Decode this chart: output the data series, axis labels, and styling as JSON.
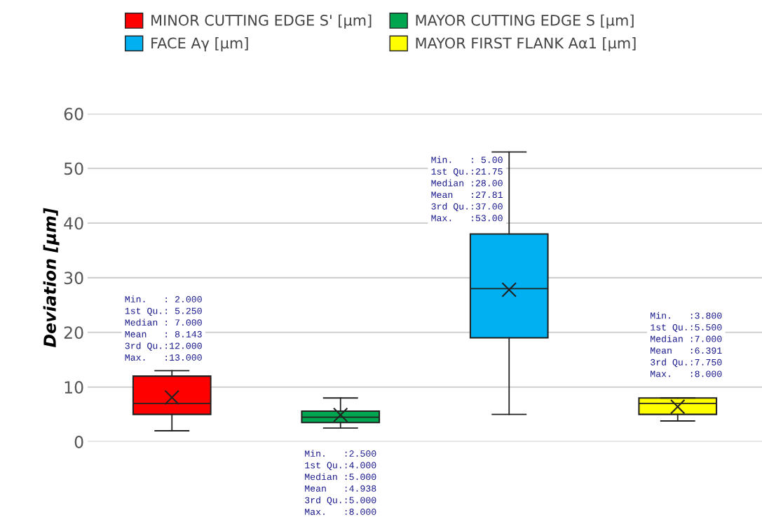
{
  "chart_data": {
    "type": "box",
    "ylabel": "Deviation [µm]",
    "categories": [
      null,
      null,
      null,
      null
    ],
    "ylim": [
      0,
      60
    ],
    "yticks": [
      0,
      10,
      20,
      30,
      40,
      50,
      60
    ],
    "grid": "y",
    "legend": "top",
    "tick_labels": "y",
    "series": [
      {
        "name": "MINOR CUTTING EDGE S' [µm]",
        "color": "#ff0000",
        "boxes": [
          {
            "low": 2,
            "q1": 5,
            "median": 7,
            "q3": 12,
            "high": 13,
            "mean": 8.1
          },
          null,
          null,
          null
        ]
      },
      {
        "name": "MAYOR CUTTING EDGE S [µm]",
        "color": "#00a550",
        "boxes": [
          null,
          {
            "low": 2.5,
            "q1": 3.5,
            "median": 4.5,
            "q3": 5.6,
            "high": 8,
            "mean": 4.9
          },
          null,
          null
        ]
      },
      {
        "name": "FACE Aγ [µm]",
        "color": "#00b0f0",
        "boxes": [
          null,
          null,
          {
            "low": 5,
            "q1": 19,
            "median": 28,
            "q3": 38,
            "high": 53,
            "mean": 27.8
          },
          null
        ]
      },
      {
        "name": "MAYOR FIRST FLANK Aα1 [µm]",
        "color": "#ffff00",
        "boxes": [
          null,
          null,
          null,
          {
            "low": 3.8,
            "q1": 5,
            "median": 7,
            "q3": 8,
            "high": 8,
            "mean": 6.4
          }
        ]
      }
    ],
    "annotations": [
      "Min.   : 2.000\n1st Qu.: 5.250\nMedian : 7.000\nMean   : 8.143\n3rd Qu.:12.000\nMax.   :13.000",
      "Min.   :2.500\n1st Qu.:4.000\nMedian :5.000\nMean   :4.938\n3rd Qu.:5.000\nMax.   :8.000",
      "Min.   : 5.00\n1st Qu.:21.75\nMedian :28.00\nMean   :27.81\n3rd Qu.:37.00\nMax.   :53.00",
      "Min.   :3.800\n1st Qu.:5.500\nMedian :7.000\nMean   :6.391\n3rd Qu.:7.750\nMax.   :8.000"
    ]
  }
}
